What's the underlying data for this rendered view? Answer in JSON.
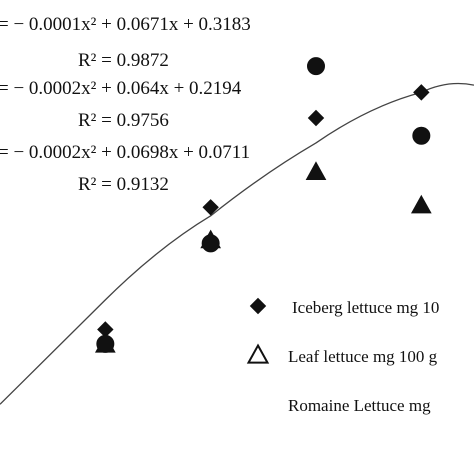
{
  "chart_data": {
    "type": "scatter",
    "title": "",
    "xlabel": "",
    "ylabel": "",
    "annotations": [
      {
        "equation": "= − 0.0001x² + 0.0671x + 0.3183",
        "r2": "R² = 0.9872"
      },
      {
        "equation": "= − 0.0002x² + 0.064x + 0.2194",
        "r2": "R² = 0.9756"
      },
      {
        "equation": "= − 0.0002x² + 0.0698x + 0.0711",
        "r2": "R² = 0.9132"
      }
    ],
    "series": [
      {
        "name": "Iceberg lettuce mg 10",
        "marker": "diamond",
        "x": [
          1,
          2,
          3,
          4
        ],
        "y": [
          1.44,
          3.3,
          4.66,
          5.05
        ]
      },
      {
        "name": "Leaf lettuce mg 100 g",
        "marker": "triangle",
        "x": [
          1,
          2,
          3,
          4
        ],
        "y": [
          1.21,
          2.8,
          3.84,
          3.33
        ]
      },
      {
        "name": "Romaine Lettuce mg",
        "marker": "circle",
        "x": [
          1,
          2,
          3,
          4
        ],
        "y": [
          1.22,
          2.75,
          5.45,
          4.39
        ]
      }
    ],
    "trendline": {
      "x": [
        0,
        1,
        2,
        3,
        4,
        4.5
      ],
      "y": [
        0.3,
        1.89,
        3.17,
        4.28,
        5.05,
        5.16
      ]
    },
    "xlim": [
      0,
      4.5
    ],
    "ylim": [
      0,
      6
    ],
    "legend_position": "bottom-right",
    "colors": {
      "marker": "#111111",
      "line": "#444444"
    }
  }
}
